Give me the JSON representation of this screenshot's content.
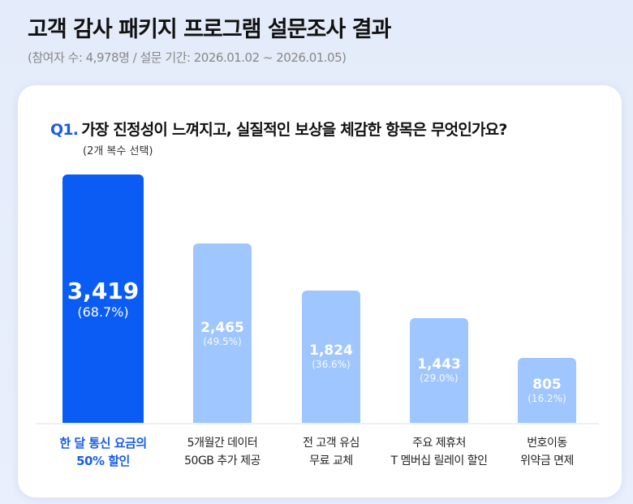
{
  "header": {
    "title": "고객 감사 패키지 프로그램 설문조사 결과",
    "subtitle": "(참여자 수: 4,978명 / 설문 기간: 2026.01.02 ~ 2026.01.05)"
  },
  "question": {
    "number": "Q1.",
    "text": "가장 진정성이 느껴지고, 실질적인 보상을 체감한 항목은 무엇인가요?",
    "note": "(2개 복수 선택)"
  },
  "colors": {
    "highlight": "#0a5cf5",
    "bar": "#9fc6ff",
    "highlight_text": "#1a5ce6"
  },
  "chart_data": {
    "type": "bar",
    "categories": [
      "한 달 통신 요금의\n50% 할인",
      "5개월간 데이터\n50GB 추가 제공",
      "전 고객 유심\n무료 교체",
      "주요 제휴처\nT 멤버십 릴레이 할인",
      "번호이동\n위약금 면제"
    ],
    "values": [
      3419,
      2465,
      1824,
      1443,
      805
    ],
    "value_labels": [
      "3,419",
      "2,465",
      "1,824",
      "1,443",
      "805"
    ],
    "percent_labels": [
      "(68.7%)",
      "(49.5%)",
      "(36.6%)",
      "(29.0%)",
      "(16.2%)"
    ],
    "highlighted_index": 0,
    "grid": false
  }
}
